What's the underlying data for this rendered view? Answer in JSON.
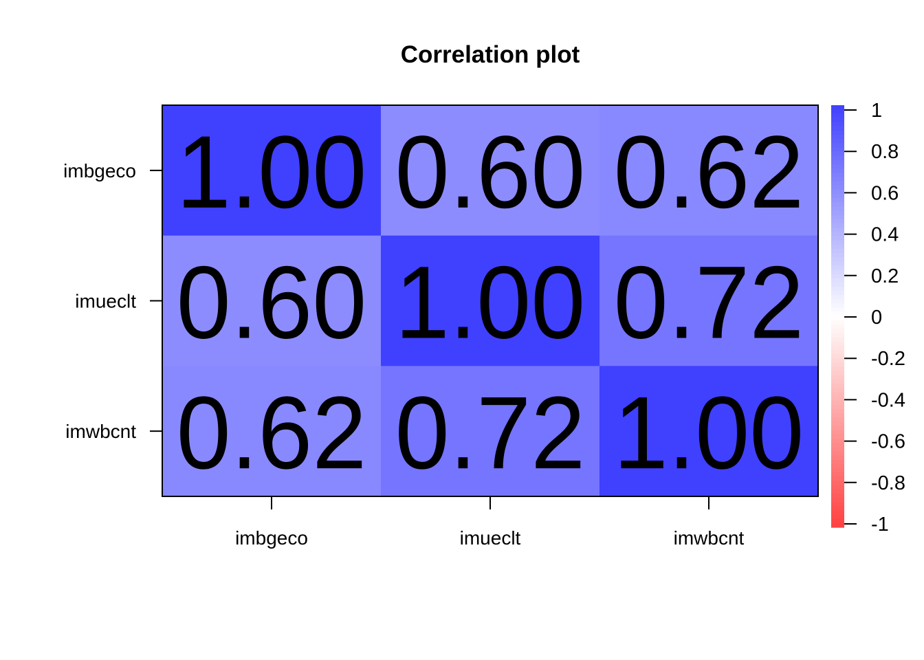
{
  "chart_data": {
    "type": "heatmap",
    "title": "Correlation plot",
    "x_labels": [
      "imbgeco",
      "imueclt",
      "imwbcnt"
    ],
    "y_labels": [
      "imbgeco",
      "imueclt",
      "imwbcnt"
    ],
    "values": [
      [
        1.0,
        0.6,
        0.62
      ],
      [
        0.6,
        1.0,
        0.72
      ],
      [
        0.62,
        0.72,
        1.0
      ]
    ],
    "display_values": [
      [
        "1.00",
        "0.60",
        "0.62"
      ],
      [
        "0.60",
        "1.00",
        "0.72"
      ],
      [
        "0.62",
        "0.72",
        "1.00"
      ]
    ],
    "color_scale": {
      "range": [
        -1,
        1
      ],
      "low_color": "#ff4040",
      "mid_color": "#ffffff",
      "high_color": "#4040ff"
    },
    "legend": {
      "placement": "right",
      "ticks": [
        "1",
        "0.8",
        "0.6",
        "0.4",
        "0.2",
        "0",
        "-0.2",
        "-0.4",
        "-0.6",
        "-0.8",
        "-1"
      ]
    }
  }
}
